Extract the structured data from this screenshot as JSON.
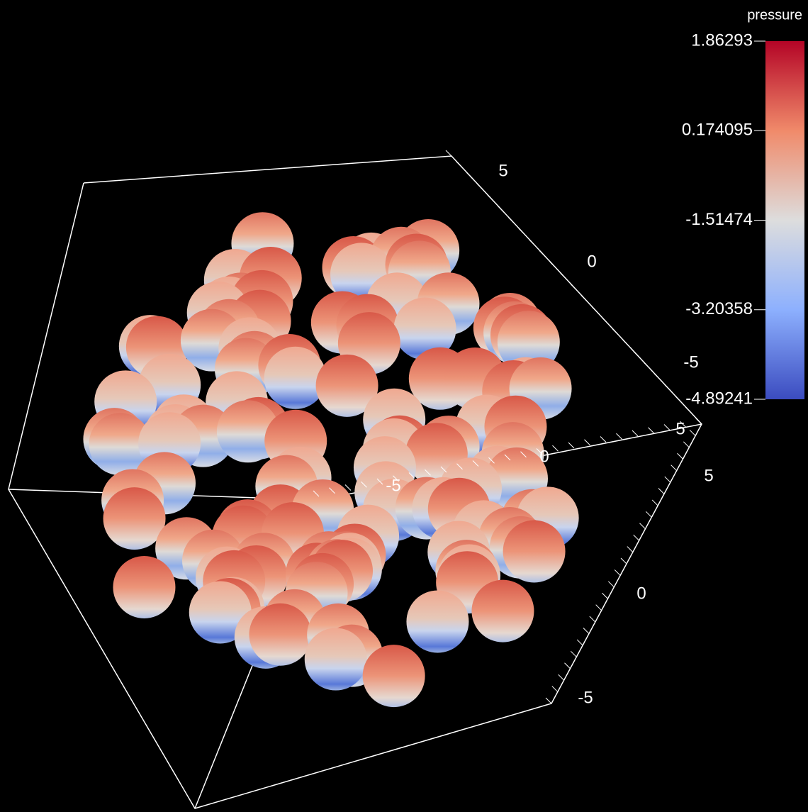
{
  "colorbar": {
    "title": "pressure",
    "ticks": [
      1.86293,
      0.174095,
      -1.51474,
      -3.20358,
      -4.89241
    ]
  },
  "axes": [
    {
      "labels": [
        -5,
        0,
        5
      ]
    },
    {
      "labels": [
        5,
        0,
        -5
      ]
    },
    {
      "labels": [
        5,
        0,
        -5
      ]
    }
  ]
}
